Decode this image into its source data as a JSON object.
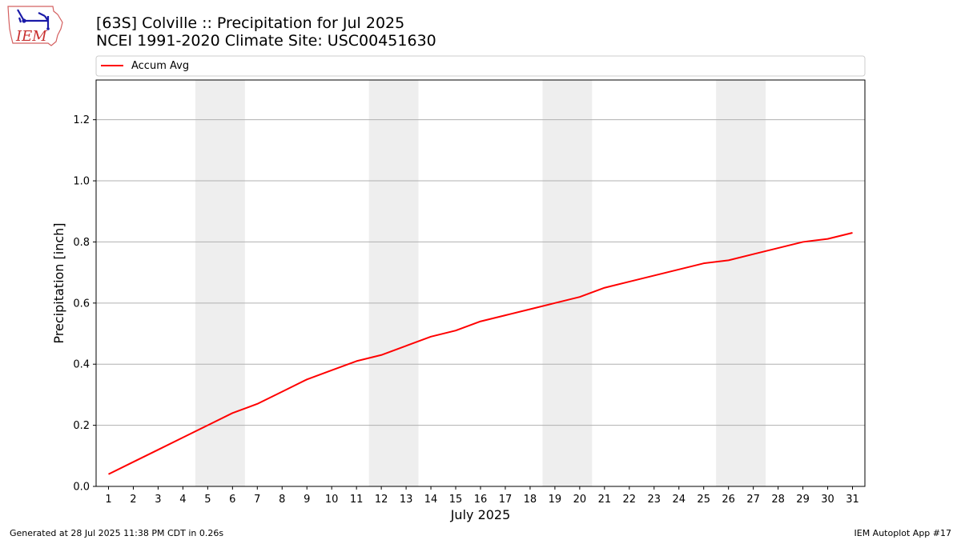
{
  "logo": {
    "text": "IEM"
  },
  "footer": {
    "left": "Generated at 28 Jul 2025 11:38 PM CDT in 0.26s",
    "right": "IEM Autoplot App #17"
  },
  "chart_data": {
    "type": "line",
    "title": "[63S] Colville :: Precipitation for Jul 2025",
    "subtitle": "NCEI 1991-2020 Climate Site: USC00451630",
    "xlabel": "July 2025",
    "ylabel": "Precipitation [inch]",
    "x": [
      1,
      2,
      3,
      4,
      5,
      6,
      7,
      8,
      9,
      10,
      11,
      12,
      13,
      14,
      15,
      16,
      17,
      18,
      19,
      20,
      21,
      22,
      23,
      24,
      25,
      26,
      27,
      28,
      29,
      30,
      31
    ],
    "x_tick_labels": [
      "1",
      "2",
      "3",
      "4",
      "5",
      "6",
      "7",
      "8",
      "9",
      "10",
      "11",
      "12",
      "13",
      "14",
      "15",
      "16",
      "17",
      "18",
      "19",
      "20",
      "21",
      "22",
      "23",
      "24",
      "25",
      "26",
      "27",
      "28",
      "29",
      "30",
      "31"
    ],
    "xlim": [
      0.5,
      31.5
    ],
    "ylim": [
      0,
      1.33
    ],
    "y_ticks": [
      0.0,
      0.2,
      0.4,
      0.6,
      0.8,
      1.0,
      1.2
    ],
    "y_tick_labels": [
      "0.0",
      "0.2",
      "0.4",
      "0.6",
      "0.8",
      "1.0",
      "1.2"
    ],
    "grid": "horizontal",
    "legend": "top",
    "weekend_shading": [
      [
        4.5,
        6.5
      ],
      [
        11.5,
        13.5
      ],
      [
        18.5,
        20.5
      ],
      [
        25.5,
        27.5
      ]
    ],
    "series": [
      {
        "name": "Accum Avg",
        "color": "#ff0000",
        "values": [
          0.04,
          0.08,
          0.12,
          0.16,
          0.2,
          0.24,
          0.27,
          0.31,
          0.35,
          0.38,
          0.41,
          0.43,
          0.46,
          0.49,
          0.51,
          0.54,
          0.56,
          0.58,
          0.6,
          0.62,
          0.65,
          0.67,
          0.69,
          0.71,
          0.73,
          0.74,
          0.76,
          0.78,
          0.8,
          0.81,
          0.83
        ]
      }
    ]
  }
}
